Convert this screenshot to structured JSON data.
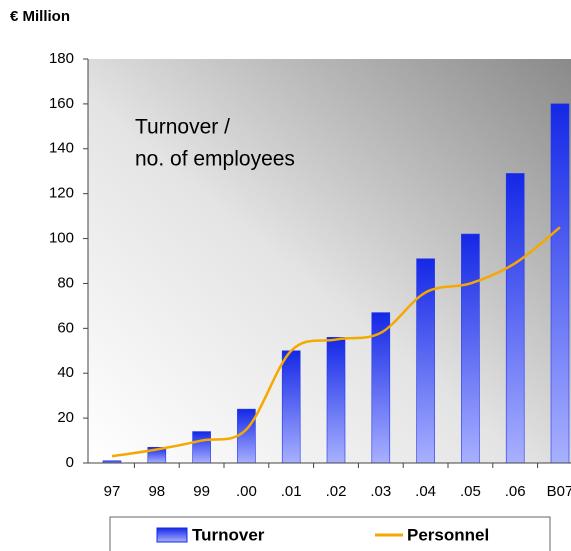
{
  "chart_data": {
    "type": "bar_line",
    "y_axis_label": "€ Million",
    "annotation": [
      "Turnover /",
      "no. of employees"
    ],
    "categories": [
      "97",
      "98",
      "99",
      ".00",
      ".01",
      ".02",
      ".03",
      ".04",
      ".05",
      ".06",
      "B07"
    ],
    "series": [
      {
        "name": "Turnover",
        "type": "bar",
        "color": "#2236e8",
        "values": [
          1,
          7,
          14,
          24,
          50,
          56,
          67,
          91,
          102,
          129,
          160
        ]
      },
      {
        "name": "Personnel",
        "type": "line",
        "color": "#f5a800",
        "values": [
          3,
          6,
          10,
          15,
          50,
          55,
          58,
          76,
          80,
          89,
          105
        ]
      }
    ],
    "ylim": [
      0,
      180
    ],
    "yticks": [
      0,
      20,
      40,
      60,
      80,
      100,
      120,
      140,
      160,
      180
    ]
  }
}
